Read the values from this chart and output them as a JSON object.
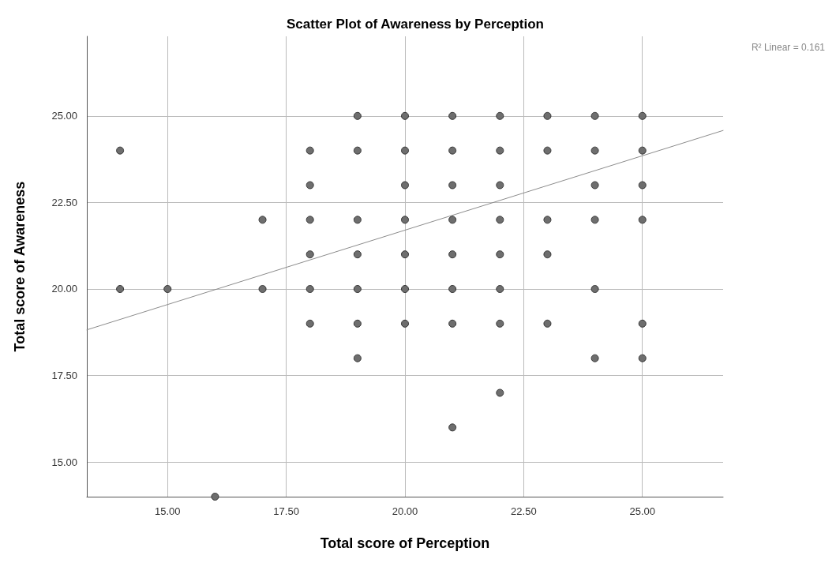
{
  "chart_data": {
    "type": "scatter",
    "title": "Scatter Plot of Awareness by Perception",
    "xlabel": "Total score of Perception",
    "ylabel": "Total score of Awareness",
    "annotations": [
      "R² Linear = 0.161"
    ],
    "series": [
      {
        "color": "#6e6e6e",
        "x": [
          19,
          20,
          21,
          22,
          23,
          24,
          25,
          14,
          18,
          19,
          20,
          21,
          22,
          23,
          24,
          25,
          18,
          20,
          21,
          22,
          24,
          25,
          17,
          18,
          19,
          20,
          21,
          22,
          23,
          24,
          25,
          18,
          19,
          20,
          21,
          22,
          23,
          14,
          15,
          17,
          18,
          19,
          20,
          21,
          22,
          24,
          18,
          19,
          20,
          21,
          22,
          23,
          25,
          19,
          24,
          25,
          22,
          21,
          16
        ],
        "values": [
          25,
          25,
          25,
          25,
          25,
          25,
          25,
          24,
          24,
          24,
          24,
          24,
          24,
          24,
          24,
          24,
          23,
          23,
          23,
          23,
          23,
          23,
          22,
          22,
          22,
          22,
          22,
          22,
          22,
          22,
          22,
          21,
          21,
          21,
          21,
          21,
          21,
          20,
          20,
          20,
          20,
          20,
          20,
          20,
          20,
          20,
          19,
          19,
          19,
          19,
          19,
          19,
          19,
          18,
          18,
          18,
          17,
          16,
          14
        ]
      },
      {
        "type": "line",
        "color": "#8c8c8c",
        "marker": "none",
        "x": [
          13.3,
          26.7
        ],
        "values": [
          18.82,
          24.58
        ]
      }
    ],
    "xlim": [
      13.3,
      26.7
    ],
    "xticks": [
      {
        "value": 15,
        "label": "15.00"
      },
      {
        "value": 17.5,
        "label": "17.50"
      },
      {
        "value": 20,
        "label": "20.00"
      },
      {
        "value": 22.5,
        "label": "22.50"
      },
      {
        "value": 25,
        "label": "25.00"
      }
    ],
    "ylim": [
      14,
      27.3
    ],
    "yticks": [
      {
        "value": 15,
        "label": "15.00"
      },
      {
        "value": 17.5,
        "label": "17.50"
      },
      {
        "value": 20,
        "label": "20.00"
      },
      {
        "value": 22.5,
        "label": "22.50"
      },
      {
        "value": 25,
        "label": "25.00"
      }
    ],
    "grid": true,
    "marker": "circle"
  }
}
